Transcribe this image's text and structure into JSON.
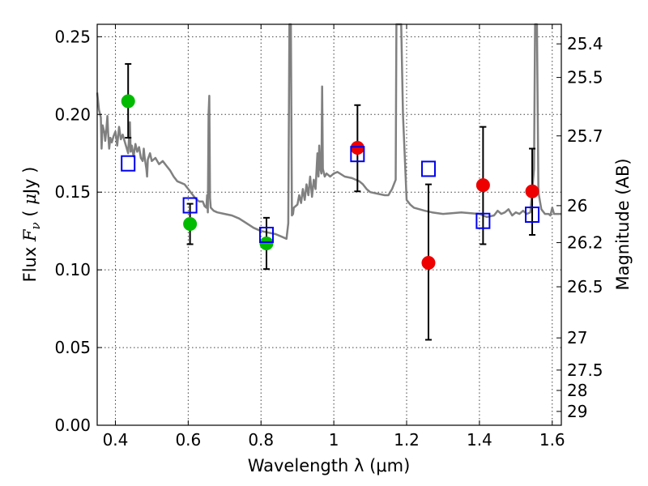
{
  "chart_data": {
    "type": "scatter",
    "xlabel": "Wavelength  λ (μm)",
    "ylabel": "Flux  F_ν  ( μJy )",
    "ylabel_right": "Magnitude (AB)",
    "xlim": [
      0.35,
      1.625
    ],
    "ylim": [
      0.0,
      0.258
    ],
    "grid": true,
    "x_ticks": [
      0.4,
      0.6,
      0.8,
      1.0,
      1.2,
      1.4,
      1.6
    ],
    "x_tick_labels": [
      "0.4",
      "0.6",
      "0.8",
      "1",
      "1.2",
      "1.4",
      "1.6"
    ],
    "y_ticks": [
      0.0,
      0.05,
      0.1,
      0.15,
      0.2,
      0.25
    ],
    "y_tick_labels": [
      "0.00",
      "0.05",
      "0.10",
      "0.15",
      "0.20",
      "0.25"
    ],
    "right_ticks": [
      {
        "label": "25.4",
        "flux": 0.2454
      },
      {
        "label": "25.5",
        "flux": 0.2238
      },
      {
        "label": "25.7",
        "flux": 0.1862
      },
      {
        "label": "26",
        "flux": 0.1413
      },
      {
        "label": "26.2",
        "flux": 0.1175
      },
      {
        "label": "26.5",
        "flux": 0.0891
      },
      {
        "label": "27",
        "flux": 0.0562
      },
      {
        "label": "27.5",
        "flux": 0.0355
      },
      {
        "label": "28",
        "flux": 0.0224
      },
      {
        "label": "29",
        "flux": 0.0089
      }
    ],
    "series": [
      {
        "type": "line",
        "color": "#808080",
        "points": [
          [
            0.35,
            0.214
          ],
          [
            0.355,
            0.203
          ],
          [
            0.36,
            0.198
          ],
          [
            0.362,
            0.178
          ],
          [
            0.365,
            0.193
          ],
          [
            0.37,
            0.188
          ],
          [
            0.372,
            0.183
          ],
          [
            0.375,
            0.19
          ],
          [
            0.378,
            0.199
          ],
          [
            0.38,
            0.188
          ],
          [
            0.383,
            0.178
          ],
          [
            0.386,
            0.185
          ],
          [
            0.39,
            0.182
          ],
          [
            0.395,
            0.186
          ],
          [
            0.4,
            0.189
          ],
          [
            0.405,
            0.18
          ],
          [
            0.41,
            0.192
          ],
          [
            0.415,
            0.184
          ],
          [
            0.42,
            0.187
          ],
          [
            0.425,
            0.183
          ],
          [
            0.43,
            0.179
          ],
          [
            0.435,
            0.175
          ],
          [
            0.438,
            0.187
          ],
          [
            0.44,
            0.195
          ],
          [
            0.442,
            0.176
          ],
          [
            0.445,
            0.18
          ],
          [
            0.45,
            0.173
          ],
          [
            0.455,
            0.181
          ],
          [
            0.46,
            0.176
          ],
          [
            0.465,
            0.179
          ],
          [
            0.47,
            0.172
          ],
          [
            0.475,
            0.17
          ],
          [
            0.478,
            0.178
          ],
          [
            0.48,
            0.173
          ],
          [
            0.485,
            0.165
          ],
          [
            0.487,
            0.16
          ],
          [
            0.489,
            0.171
          ],
          [
            0.495,
            0.175
          ],
          [
            0.5,
            0.17
          ],
          [
            0.51,
            0.172
          ],
          [
            0.52,
            0.168
          ],
          [
            0.53,
            0.17
          ],
          [
            0.54,
            0.167
          ],
          [
            0.55,
            0.164
          ],
          [
            0.56,
            0.16
          ],
          [
            0.57,
            0.157
          ],
          [
            0.58,
            0.156
          ],
          [
            0.59,
            0.155
          ],
          [
            0.6,
            0.152
          ],
          [
            0.61,
            0.149
          ],
          [
            0.62,
            0.146
          ],
          [
            0.63,
            0.144
          ],
          [
            0.64,
            0.144
          ],
          [
            0.645,
            0.141
          ],
          [
            0.65,
            0.14
          ],
          [
            0.652,
            0.148
          ],
          [
            0.654,
            0.137
          ],
          [
            0.656,
            0.2
          ],
          [
            0.658,
            0.212
          ],
          [
            0.66,
            0.146
          ],
          [
            0.662,
            0.14
          ],
          [
            0.67,
            0.138
          ],
          [
            0.68,
            0.137
          ],
          [
            0.7,
            0.136
          ],
          [
            0.72,
            0.135
          ],
          [
            0.74,
            0.133
          ],
          [
            0.76,
            0.13
          ],
          [
            0.78,
            0.127
          ],
          [
            0.8,
            0.125
          ],
          [
            0.82,
            0.124
          ],
          [
            0.84,
            0.123
          ],
          [
            0.86,
            0.121
          ],
          [
            0.87,
            0.12
          ],
          [
            0.875,
            0.13
          ],
          [
            0.878,
            0.258
          ],
          [
            0.882,
            0.258
          ],
          [
            0.885,
            0.135
          ],
          [
            0.888,
            0.136
          ],
          [
            0.89,
            0.14
          ],
          [
            0.9,
            0.142
          ],
          [
            0.905,
            0.148
          ],
          [
            0.91,
            0.143
          ],
          [
            0.915,
            0.152
          ],
          [
            0.92,
            0.145
          ],
          [
            0.925,
            0.155
          ],
          [
            0.93,
            0.148
          ],
          [
            0.935,
            0.16
          ],
          [
            0.94,
            0.147
          ],
          [
            0.945,
            0.158
          ],
          [
            0.95,
            0.152
          ],
          [
            0.955,
            0.175
          ],
          [
            0.958,
            0.16
          ],
          [
            0.96,
            0.18
          ],
          [
            0.963,
            0.165
          ],
          [
            0.966,
            0.162
          ],
          [
            0.968,
            0.218
          ],
          [
            0.97,
            0.165
          ],
          [
            0.975,
            0.16
          ],
          [
            0.98,
            0.162
          ],
          [
            0.99,
            0.16
          ],
          [
            1.0,
            0.162
          ],
          [
            1.01,
            0.163
          ],
          [
            1.03,
            0.16
          ],
          [
            1.05,
            0.159
          ],
          [
            1.06,
            0.158
          ],
          [
            1.07,
            0.157
          ],
          [
            1.08,
            0.155
          ],
          [
            1.09,
            0.152
          ],
          [
            1.1,
            0.15
          ],
          [
            1.12,
            0.149
          ],
          [
            1.14,
            0.148
          ],
          [
            1.15,
            0.148
          ],
          [
            1.16,
            0.152
          ],
          [
            1.17,
            0.158
          ],
          [
            1.172,
            0.258
          ],
          [
            1.185,
            0.258
          ],
          [
            1.19,
            0.2
          ],
          [
            1.2,
            0.145
          ],
          [
            1.21,
            0.142
          ],
          [
            1.22,
            0.14
          ],
          [
            1.25,
            0.138
          ],
          [
            1.27,
            0.137
          ],
          [
            1.3,
            0.136
          ],
          [
            1.35,
            0.137
          ],
          [
            1.4,
            0.136
          ],
          [
            1.42,
            0.134
          ],
          [
            1.44,
            0.135
          ],
          [
            1.45,
            0.138
          ],
          [
            1.46,
            0.136
          ],
          [
            1.47,
            0.137
          ],
          [
            1.48,
            0.139
          ],
          [
            1.49,
            0.135
          ],
          [
            1.5,
            0.137
          ],
          [
            1.51,
            0.136
          ],
          [
            1.52,
            0.138
          ],
          [
            1.53,
            0.136
          ],
          [
            1.54,
            0.137
          ],
          [
            1.55,
            0.165
          ],
          [
            1.553,
            0.258
          ],
          [
            1.558,
            0.258
          ],
          [
            1.562,
            0.15
          ],
          [
            1.57,
            0.139
          ],
          [
            1.58,
            0.136
          ],
          [
            1.59,
            0.136
          ],
          [
            1.595,
            0.135
          ],
          [
            1.6,
            0.14
          ],
          [
            1.605,
            0.136
          ],
          [
            1.625,
            0.136
          ]
        ]
      },
      {
        "type": "points",
        "marker": "circle",
        "color": "#00bb00",
        "points": [
          {
            "x": 0.435,
            "y": 0.2085,
            "yerr_low": 0.185,
            "yerr_high": 0.2325
          },
          {
            "x": 0.605,
            "y": 0.1295,
            "yerr_low": 0.1165,
            "yerr_high": 0.1425
          },
          {
            "x": 0.815,
            "y": 0.117,
            "yerr_low": 0.1005,
            "yerr_high": 0.1335
          }
        ]
      },
      {
        "type": "points",
        "marker": "circle",
        "color": "#ee0000",
        "points": [
          {
            "x": 1.065,
            "y": 0.1785,
            "yerr_low": 0.1505,
            "yerr_high": 0.206
          },
          {
            "x": 1.26,
            "y": 0.1045,
            "yerr_low": 0.055,
            "yerr_high": 0.155
          },
          {
            "x": 1.41,
            "y": 0.1545,
            "yerr_low": 0.1165,
            "yerr_high": 0.192
          },
          {
            "x": 1.545,
            "y": 0.1505,
            "yerr_low": 0.1225,
            "yerr_high": 0.178
          }
        ]
      },
      {
        "type": "points",
        "marker": "square",
        "color": "#0000ee",
        "points": [
          {
            "x": 0.435,
            "y": 0.1685
          },
          {
            "x": 0.605,
            "y": 0.1415
          },
          {
            "x": 0.815,
            "y": 0.1225
          },
          {
            "x": 1.065,
            "y": 0.1745
          },
          {
            "x": 1.26,
            "y": 0.165
          },
          {
            "x": 1.41,
            "y": 0.1315
          },
          {
            "x": 1.545,
            "y": 0.1355
          }
        ]
      }
    ]
  }
}
